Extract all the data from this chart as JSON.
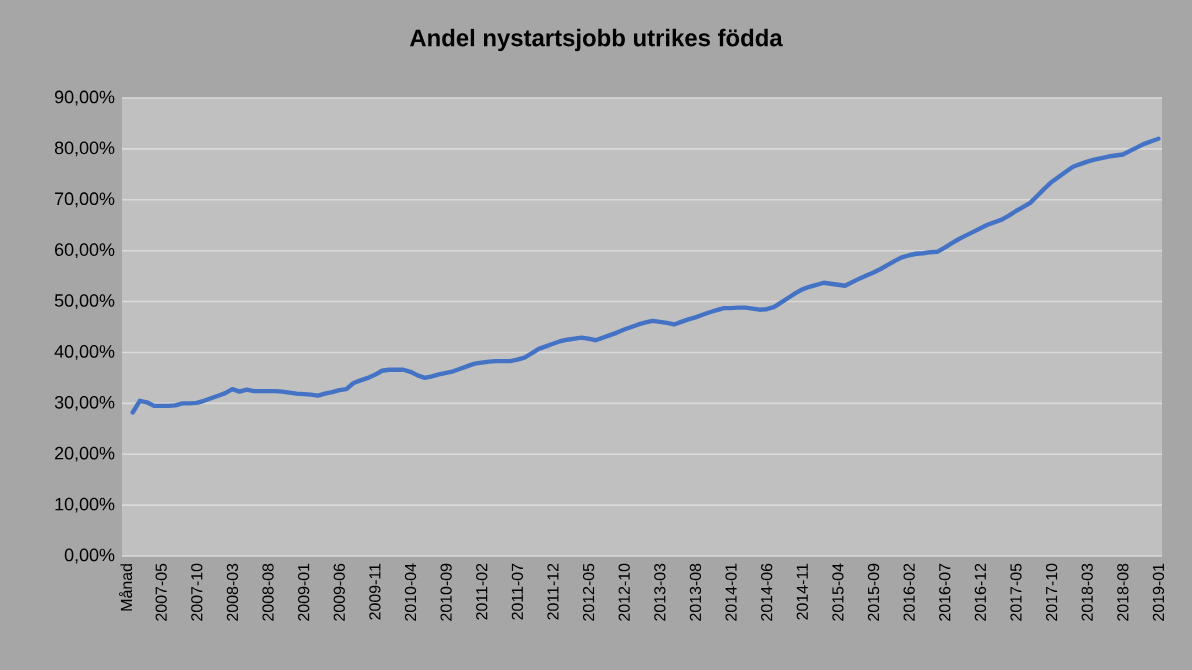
{
  "chart_data": {
    "type": "line",
    "title": "Andel nystartsjobb utrikes födda",
    "categories": [
      "Månad",
      null,
      null,
      null,
      null,
      "2007-05",
      null,
      null,
      null,
      null,
      "2007-10",
      null,
      null,
      null,
      null,
      "2008-03",
      null,
      null,
      null,
      null,
      "2008-08",
      null,
      null,
      null,
      null,
      "2009-01",
      null,
      null,
      null,
      null,
      "2009-06",
      null,
      null,
      null,
      null,
      "2009-11",
      null,
      null,
      null,
      null,
      "2010-04",
      null,
      null,
      null,
      null,
      "2010-09",
      null,
      null,
      null,
      null,
      "2011-02",
      null,
      null,
      null,
      null,
      "2011-07",
      null,
      null,
      null,
      null,
      "2011-12",
      null,
      null,
      null,
      null,
      "2012-05",
      null,
      null,
      null,
      null,
      "2012-10",
      null,
      null,
      null,
      null,
      "2013-03",
      null,
      null,
      null,
      null,
      "2013-08",
      null,
      null,
      null,
      null,
      "2014-01",
      null,
      null,
      null,
      null,
      "2014-06",
      null,
      null,
      null,
      null,
      "2014-11",
      null,
      null,
      null,
      null,
      "2015-04",
      null,
      null,
      null,
      null,
      "2015-09",
      null,
      null,
      null,
      null,
      "2016-02",
      null,
      null,
      null,
      null,
      "2016-07",
      null,
      null,
      null,
      null,
      "2016-12",
      null,
      null,
      null,
      null,
      "2017-05",
      null,
      null,
      null,
      null,
      "2017-10",
      null,
      null,
      null,
      null,
      "2018-03",
      null,
      null,
      null,
      null,
      "2018-08",
      null,
      null,
      null,
      null,
      "2019-01"
    ],
    "series": [
      {
        "color": "#4472c4",
        "values": [
          null,
          28.2,
          30.5,
          30.2,
          29.5,
          29.5,
          29.5,
          29.6,
          30.0,
          30.0,
          30.1,
          30.5,
          31.0,
          31.5,
          32.0,
          32.8,
          32.3,
          32.7,
          32.4,
          32.4,
          32.4,
          32.4,
          32.3,
          32.1,
          31.9,
          31.8,
          31.7,
          31.5,
          31.9,
          32.2,
          32.6,
          32.8,
          34.0,
          34.5,
          35.0,
          35.6,
          36.4,
          36.6,
          36.6,
          36.6,
          36.2,
          35.5,
          35.0,
          35.3,
          35.7,
          36.0,
          36.3,
          36.8,
          37.3,
          37.8,
          38.0,
          38.2,
          38.3,
          38.3,
          38.3,
          38.6,
          39.0,
          39.8,
          40.7,
          41.2,
          41.7,
          42.2,
          42.5,
          42.7,
          42.9,
          42.7,
          42.4,
          42.9,
          43.4,
          43.9,
          44.5,
          45.0,
          45.5,
          45.9,
          46.2,
          46.0,
          45.8,
          45.5,
          46.0,
          46.5,
          46.9,
          47.4,
          47.9,
          48.3,
          48.7,
          48.7,
          48.8,
          48.8,
          48.6,
          48.4,
          48.5,
          48.9,
          49.8,
          50.7,
          51.6,
          52.4,
          52.9,
          53.3,
          53.7,
          53.5,
          53.3,
          53.1,
          53.8,
          54.5,
          55.1,
          55.7,
          56.4,
          57.2,
          58.0,
          58.7,
          59.1,
          59.4,
          59.5,
          59.7,
          59.8,
          60.6,
          61.5,
          62.3,
          63.0,
          63.7,
          64.4,
          65.1,
          65.6,
          66.1,
          66.9,
          67.8,
          68.6,
          69.4,
          70.8,
          72.2,
          73.5,
          74.5,
          75.5,
          76.5,
          77.0,
          77.5,
          77.9,
          78.2,
          78.5,
          78.7,
          78.9,
          79.6,
          80.3,
          81.0,
          81.5,
          82.0
        ]
      }
    ],
    "ylim": [
      0,
      90
    ],
    "yticks": [
      {
        "value": 0,
        "label": "0,00%"
      },
      {
        "value": 10,
        "label": "10,00%"
      },
      {
        "value": 20,
        "label": "20,00%"
      },
      {
        "value": 30,
        "label": "30,00%"
      },
      {
        "value": 40,
        "label": "40,00%"
      },
      {
        "value": 50,
        "label": "50,00%"
      },
      {
        "value": 60,
        "label": "60,00%"
      },
      {
        "value": 70,
        "label": "70,00%"
      },
      {
        "value": 80,
        "label": "80,00%"
      },
      {
        "value": 90,
        "label": "90,00%"
      }
    ],
    "grid": "y",
    "legend": false,
    "marker": "none",
    "line_style": "solid"
  }
}
